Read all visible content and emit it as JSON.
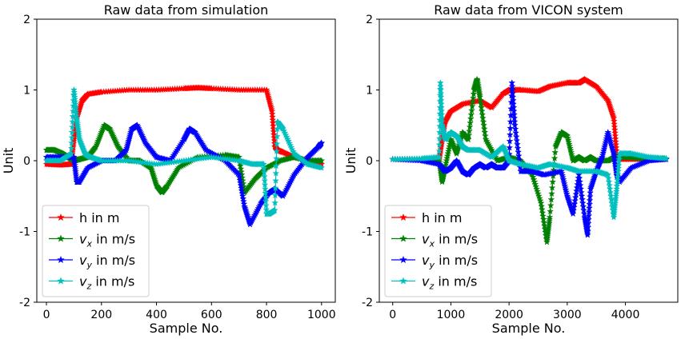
{
  "chart_data": [
    {
      "type": "line",
      "title": "Raw data from simulation",
      "xlabel": "Sample No.",
      "ylabel": "Unit",
      "xlim": [
        -35,
        1050
      ],
      "ylim": [
        -2,
        2
      ],
      "xticks": [
        0,
        200,
        400,
        600,
        800,
        1000
      ],
      "yticks": [
        -2,
        -1,
        0,
        1,
        2
      ],
      "grid": false,
      "legend_position": "lower-left",
      "marker": "star",
      "series": [
        {
          "name": "h in m",
          "color": "#ff0000",
          "x": [
            0,
            50,
            90,
            100,
            110,
            130,
            150,
            200,
            300,
            400,
            500,
            550,
            600,
            700,
            800,
            820,
            830,
            840,
            860,
            900,
            950,
            1000
          ],
          "y": [
            -0.05,
            -0.06,
            -0.05,
            0.3,
            0.6,
            0.85,
            0.94,
            0.97,
            1.0,
            1.0,
            1.02,
            1.03,
            1.02,
            1.0,
            1.0,
            0.7,
            0.2,
            0.15,
            0.12,
            0.05,
            0.0,
            -0.05
          ]
        },
        {
          "name": "v_x in m/s",
          "color": "#008000",
          "x": [
            0,
            30,
            60,
            80,
            100,
            120,
            150,
            180,
            210,
            230,
            260,
            300,
            340,
            380,
            400,
            420,
            440,
            480,
            550,
            650,
            700,
            720,
            760,
            800,
            850,
            900,
            950,
            1000
          ],
          "y": [
            0.15,
            0.15,
            0.1,
            0.05,
            0.0,
            0.02,
            0.05,
            0.2,
            0.5,
            0.45,
            0.2,
            0.0,
            0.0,
            -0.1,
            -0.35,
            -0.45,
            -0.35,
            -0.1,
            0.05,
            0.08,
            0.05,
            -0.45,
            -0.25,
            -0.1,
            0.0,
            0.05,
            0.0,
            0.0
          ]
        },
        {
          "name": "v_y in m/s",
          "color": "#0000ff",
          "x": [
            0,
            50,
            100,
            110,
            120,
            150,
            200,
            250,
            290,
            310,
            330,
            360,
            400,
            450,
            500,
            520,
            540,
            580,
            650,
            700,
            720,
            740,
            780,
            810,
            830,
            860,
            900,
            950,
            990,
            1000
          ],
          "y": [
            0.05,
            0.05,
            0.05,
            -0.3,
            -0.3,
            -0.1,
            0.0,
            0.0,
            0.15,
            0.45,
            0.5,
            0.25,
            0.05,
            0.0,
            0.3,
            0.45,
            0.4,
            0.15,
            0.0,
            -0.2,
            -0.65,
            -0.9,
            -0.6,
            -0.45,
            -0.4,
            -0.5,
            -0.2,
            0.05,
            0.2,
            0.25
          ]
        },
        {
          "name": "v_z in m/s",
          "color": "#00bfbf",
          "x": [
            0,
            50,
            90,
            100,
            110,
            120,
            140,
            160,
            200,
            300,
            400,
            500,
            600,
            700,
            750,
            790,
            800,
            810,
            830,
            840,
            860,
            900,
            950,
            1000
          ],
          "y": [
            0.0,
            0.0,
            0.1,
            1.0,
            0.6,
            0.3,
            0.1,
            0.05,
            0.0,
            0.0,
            -0.05,
            0.0,
            0.05,
            0.0,
            -0.05,
            -0.05,
            -0.75,
            -0.75,
            -0.7,
            0.55,
            0.45,
            0.1,
            -0.05,
            -0.1
          ]
        }
      ]
    },
    {
      "type": "line",
      "title": "Raw data from VICON system",
      "xlabel": "Sample No.",
      "ylabel": "Unit",
      "xlim": [
        -230,
        4900
      ],
      "ylim": [
        -2,
        2
      ],
      "xticks": [
        0,
        1000,
        2000,
        3000,
        4000
      ],
      "yticks": [
        -2,
        -1,
        0,
        1,
        2
      ],
      "grid": false,
      "legend_position": "lower-left",
      "marker": "star",
      "series": [
        {
          "name": "h in m",
          "color": "#ff0000",
          "x": [
            0,
            500,
            800,
            850,
            900,
            1000,
            1200,
            1500,
            1700,
            1900,
            2000,
            2200,
            2500,
            2700,
            3000,
            3200,
            3300,
            3500,
            3700,
            3800,
            3850,
            3900,
            4000,
            4300,
            4700
          ],
          "y": [
            0.02,
            0.02,
            0.02,
            0.3,
            0.55,
            0.7,
            0.8,
            0.85,
            0.75,
            0.95,
            1.0,
            1.0,
            0.98,
            1.05,
            1.1,
            1.1,
            1.15,
            1.05,
            0.85,
            0.6,
            0.1,
            0.03,
            0.02,
            0.02,
            0.02
          ]
        },
        {
          "name": "v_x in m/s",
          "color": "#008000",
          "x": [
            0,
            500,
            800,
            850,
            900,
            1000,
            1100,
            1200,
            1300,
            1400,
            1450,
            1500,
            1600,
            1800,
            2000,
            2200,
            2400,
            2550,
            2650,
            2700,
            2800,
            2900,
            3000,
            3100,
            3200,
            3300,
            3400,
            3500,
            3700,
            3800,
            4000,
            4300,
            4700
          ],
          "y": [
            0.02,
            0.02,
            0.0,
            -0.3,
            -0.1,
            0.3,
            0.1,
            0.4,
            0.3,
            1.0,
            1.15,
            0.9,
            0.3,
            0.0,
            0.05,
            0.0,
            -0.2,
            -0.6,
            -1.15,
            -0.8,
            0.2,
            0.4,
            0.35,
            0.0,
            0.05,
            0.0,
            0.05,
            0.0,
            0.0,
            0.05,
            0.05,
            0.03,
            0.03
          ]
        },
        {
          "name": "v_y in m/s",
          "color": "#0000ff",
          "x": [
            0,
            500,
            800,
            900,
            1000,
            1100,
            1200,
            1300,
            1400,
            1500,
            1600,
            1700,
            1800,
            1900,
            2000,
            2050,
            2100,
            2200,
            2400,
            2600,
            2900,
            3000,
            3100,
            3200,
            3300,
            3350,
            3400,
            3500,
            3600,
            3700,
            3800,
            3850,
            3900,
            4100,
            4400,
            4700
          ],
          "y": [
            0.02,
            0.0,
            -0.05,
            -0.15,
            -0.1,
            0.0,
            -0.15,
            -0.2,
            -0.1,
            -0.05,
            -0.1,
            -0.05,
            -0.1,
            -0.1,
            0.0,
            1.1,
            0.5,
            -0.15,
            -0.15,
            -0.2,
            -0.15,
            -0.5,
            -0.75,
            -0.2,
            -0.8,
            -1.05,
            -0.4,
            -0.15,
            0.05,
            0.4,
            0.1,
            -0.2,
            -0.3,
            -0.1,
            0.0,
            0.02
          ]
        },
        {
          "name": "v_z in m/s",
          "color": "#00bfbf",
          "x": [
            0,
            500,
            800,
            820,
            850,
            900,
            1000,
            1100,
            1200,
            1300,
            1500,
            1700,
            1900,
            2000,
            2200,
            2500,
            2700,
            3000,
            3200,
            3500,
            3700,
            3800,
            3850,
            3900,
            4100,
            4400,
            4700
          ],
          "y": [
            0.02,
            0.03,
            0.05,
            1.1,
            0.5,
            0.3,
            0.4,
            0.35,
            0.2,
            0.15,
            0.15,
            0.05,
            0.2,
            0.0,
            -0.05,
            -0.1,
            -0.05,
            -0.1,
            -0.15,
            -0.15,
            -0.2,
            -0.8,
            -0.4,
            0.1,
            0.1,
            0.05,
            0.03
          ]
        }
      ]
    }
  ]
}
